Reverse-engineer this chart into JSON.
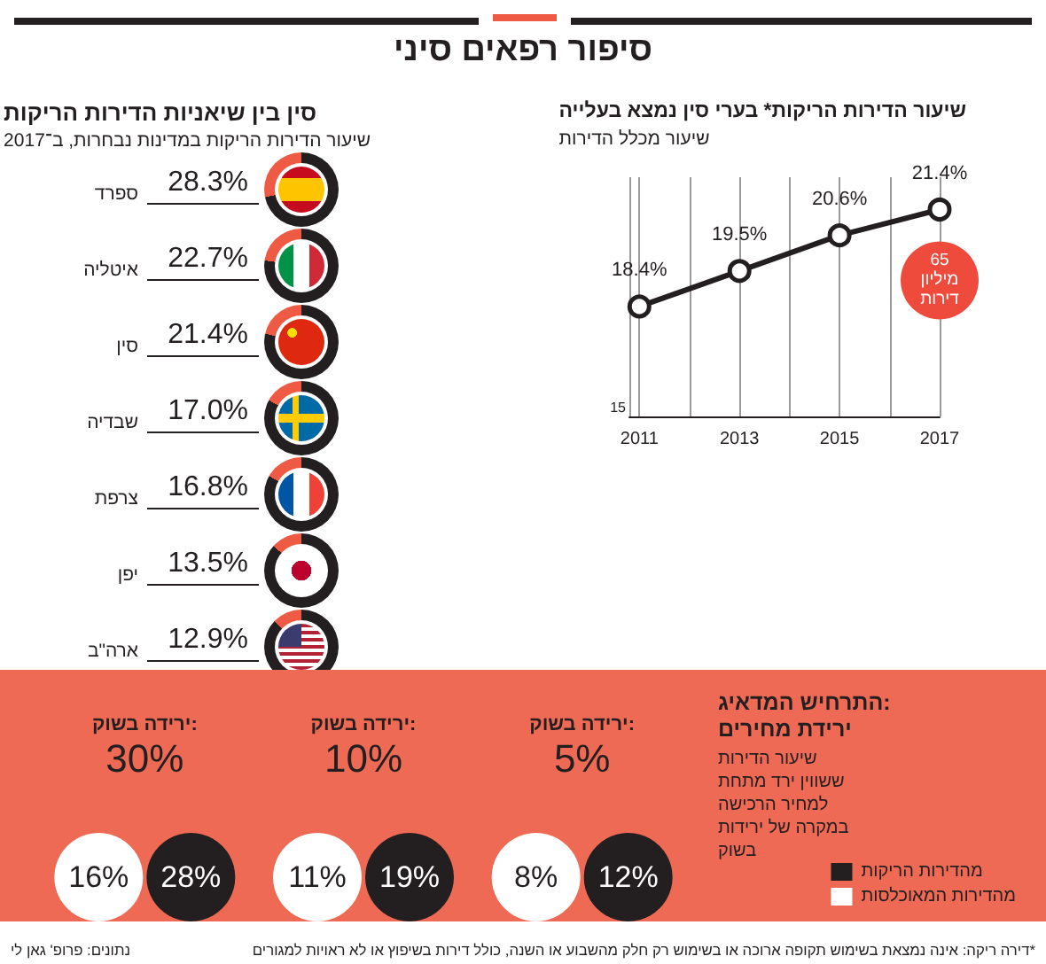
{
  "chart_data": [
    {
      "type": "other",
      "title": "סיפור רפאים סיני",
      "annotations": [
        "*דירה ריקה: אינה נמצאת בשימוש תקופה ארוכה או בשימוש רק חלק מהשבוע או השנה, כולל דירות בשיפוץ או לא ראויות למגורים",
        "נתונים: פרופ' גאן לי"
      ]
    },
    {
      "type": "other",
      "title": "סין בין שיאניות הדירות הריקות",
      "subtitle": "שיעור הדירות הריקות במדינות נבחרות, ב־2017",
      "categories": [
        "ספרד",
        "איטליה",
        "סין",
        "שבדיה",
        "צרפת",
        "יפן",
        "ארה\"ב"
      ],
      "values": [
        28.3,
        22.7,
        21.4,
        17.0,
        16.8,
        13.5,
        12.9
      ],
      "value_labels": [
        "28.3%",
        "22.7%",
        "21.4%",
        "17.0%",
        "16.8%",
        "13.5%",
        "12.9%"
      ],
      "colors": [
        "#ef5a45",
        "#ef5a45",
        "#ef5a45",
        "#ef5a45",
        "#ef5a45",
        "#ef5a45",
        "#ef5a45"
      ]
    },
    {
      "type": "line",
      "title": "שיעור הדירות הריקות* בערי סין נמצא בעלייה",
      "subtitle": "שיעור מכלל הדירות",
      "x": [
        2011,
        2013,
        2015,
        2017
      ],
      "series": [
        {
          "color": "#231f20",
          "values": [
            18.4,
            19.5,
            20.6,
            21.4
          ],
          "value_labels": [
            "18.4%",
            "19.5%",
            "20.6%",
            "21.4%"
          ]
        }
      ],
      "xlim": [
        2010.8,
        2017
      ],
      "xticks": [
        2011,
        2013,
        2015,
        2017
      ],
      "ylim": [
        15,
        22.4
      ],
      "grid": "x",
      "marker": "circle",
      "line_style": "solid",
      "annotations": [
        {
          "text": "65 מיליון דירות",
          "x": 2017,
          "y": 21.4
        },
        "15"
      ]
    },
    {
      "type": "other",
      "title": "התרחיש המדאיג: ירידת מחירים",
      "subtitle": "שיעור הדירות ששווין ירד מתחת למחיר הרכישה במקרה של ירידות בשוק",
      "categories": [
        "ירידה בשוק: 30%",
        "ירידה בשוק: 10%",
        "ירידה בשוק: 5%"
      ],
      "series": [
        {
          "name": "מהדירות הריקות",
          "color": "#231f20",
          "values": [
            28,
            19,
            12
          ],
          "value_labels": [
            "28%",
            "19%",
            "12%"
          ]
        },
        {
          "name": "מהדירות המאוכלסות",
          "color": "#ffffff",
          "values": [
            16,
            11,
            8
          ],
          "value_labels": [
            "16%",
            "11%",
            "8%"
          ]
        }
      ],
      "legend": "bottom right"
    }
  ]
}
